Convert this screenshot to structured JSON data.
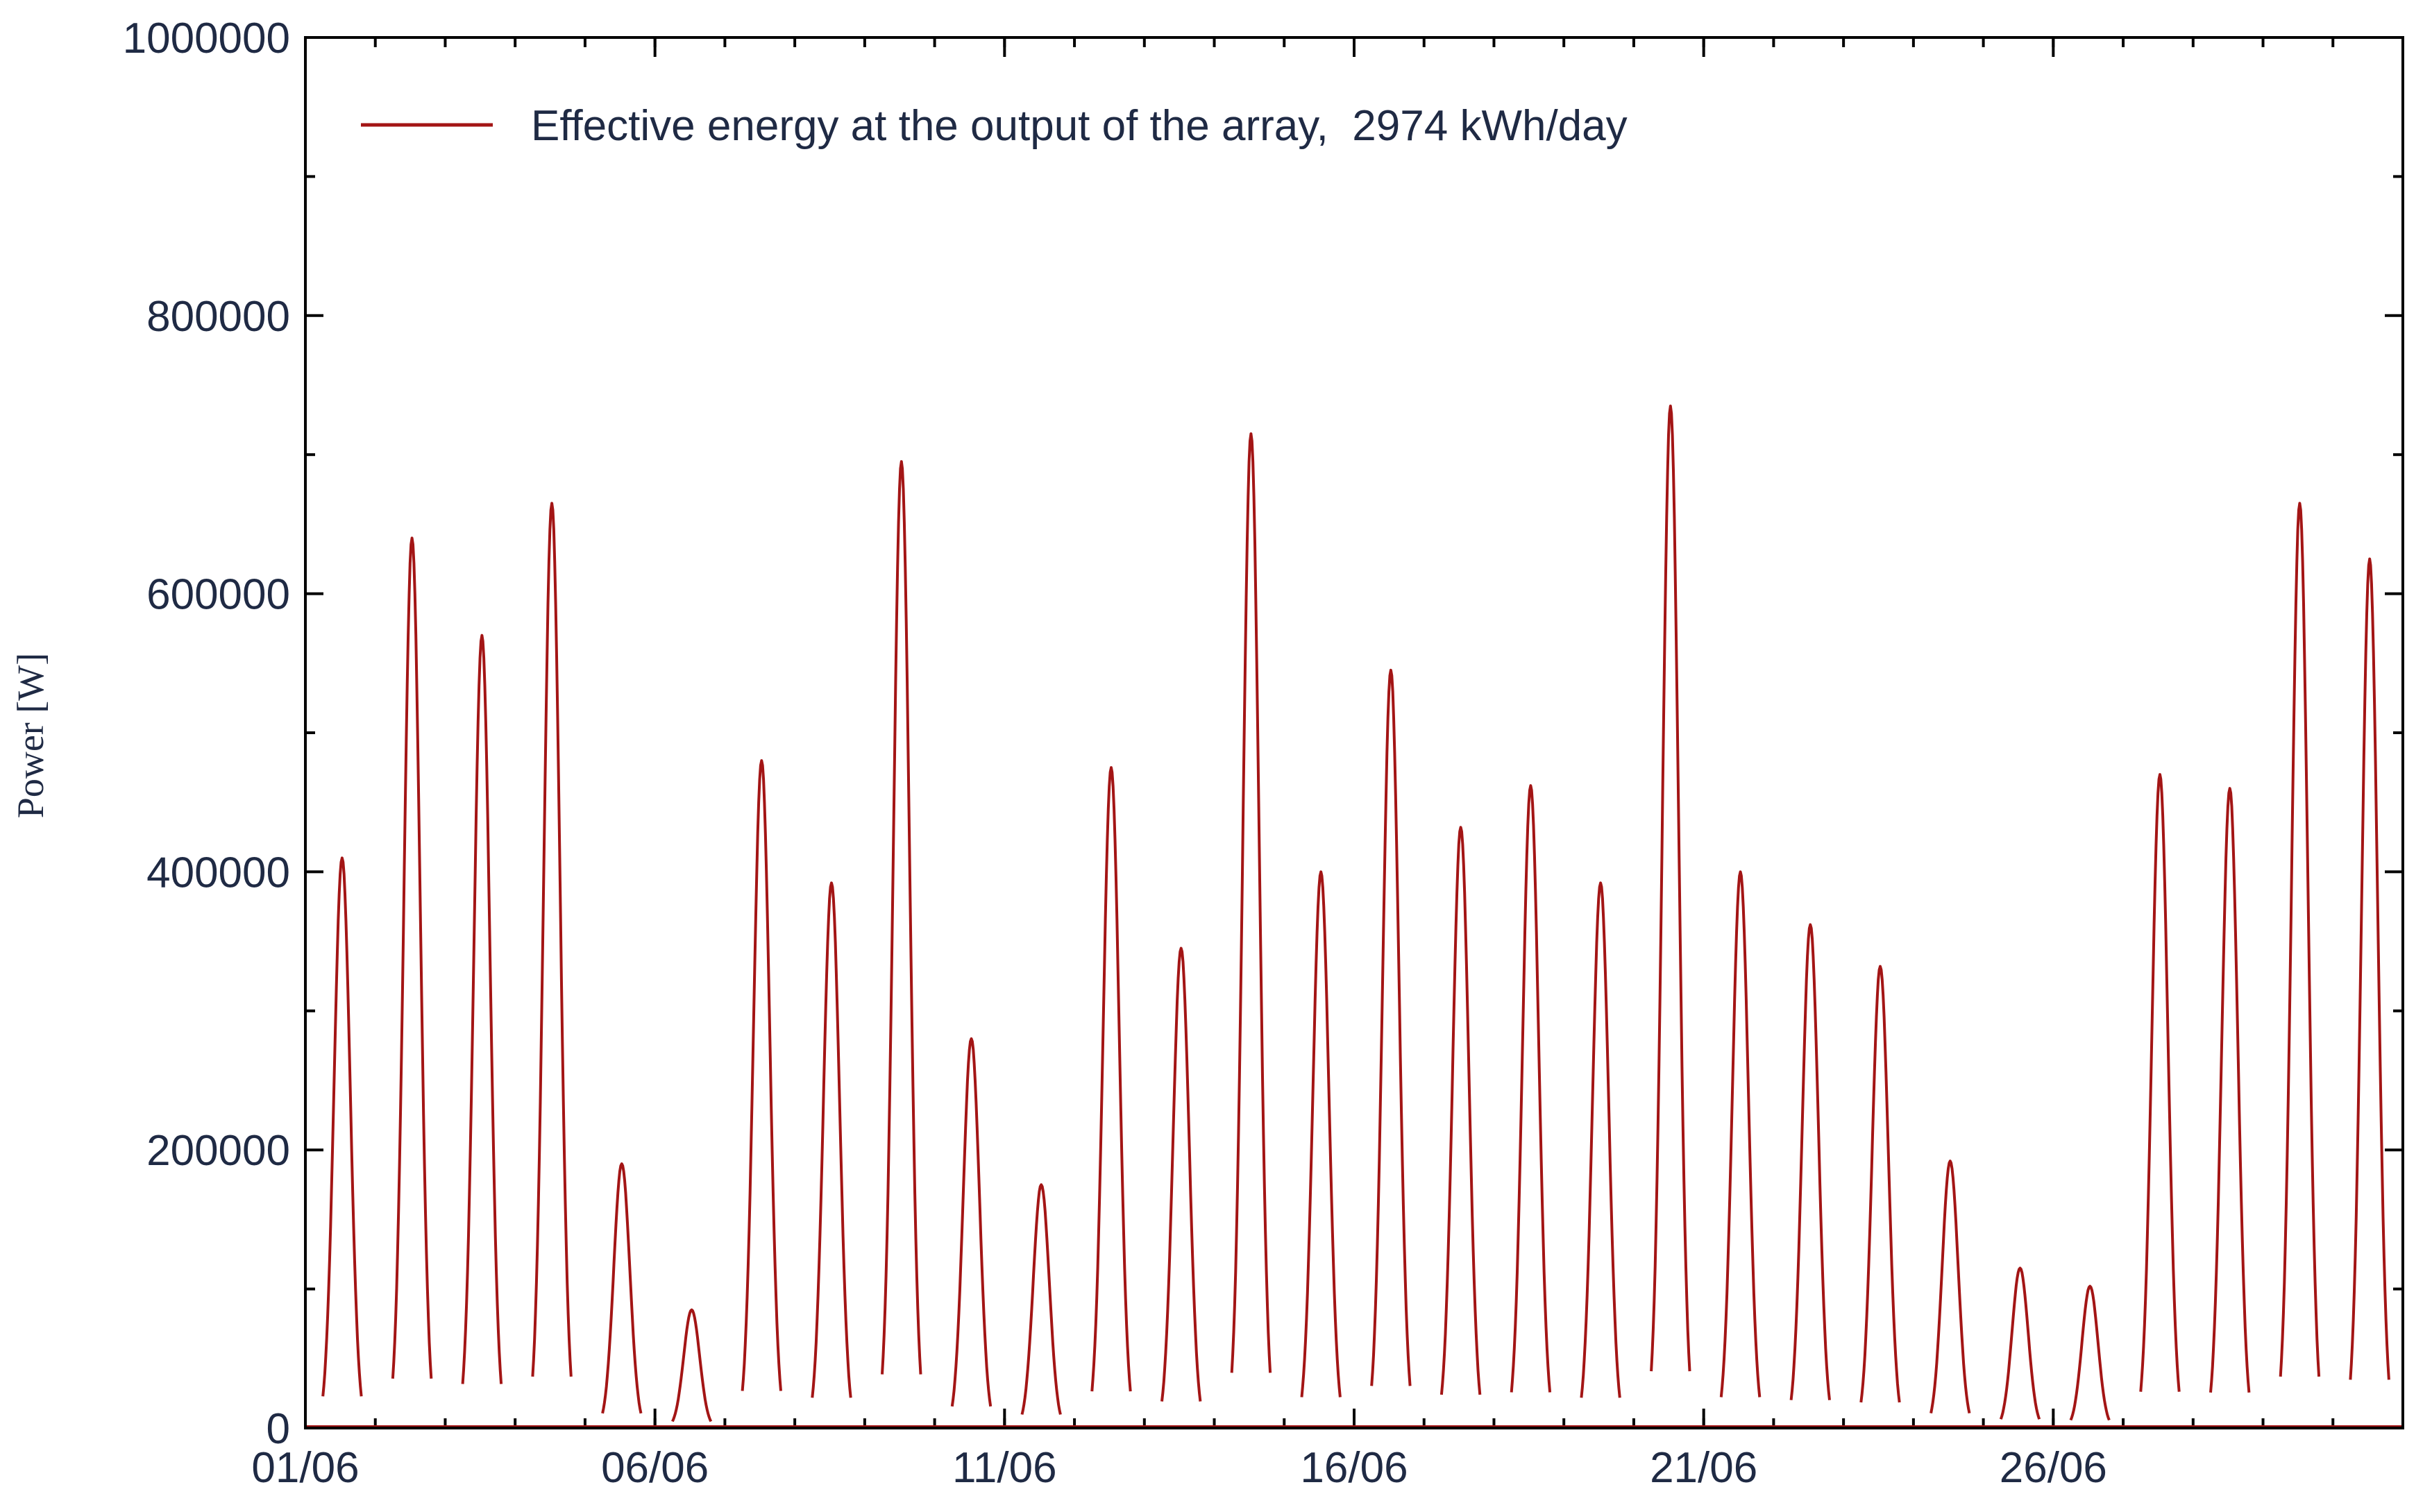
{
  "chart_data": {
    "type": "line",
    "title": "",
    "xlabel": "",
    "ylabel": "Power  [W]",
    "xlim": [
      "01/06",
      "30/06"
    ],
    "ylim": [
      0,
      1000000
    ],
    "y_ticks": [
      "0",
      "200000",
      "400000",
      "600000",
      "800000",
      "1000000"
    ],
    "x_ticks": [
      "01/06",
      "06/06",
      "11/06",
      "16/06",
      "21/06",
      "26/06"
    ],
    "grid": false,
    "legend_position": "top-left",
    "series": [
      {
        "name": "Effective energy at the output of the array,  2974 kWh/day",
        "color": "#a31515",
        "daily_peaks": [
          {
            "date": "01/06",
            "peak": 410000
          },
          {
            "date": "02/06",
            "peak": 640000
          },
          {
            "date": "03/06",
            "peak": 570000
          },
          {
            "date": "04/06",
            "peak": 665000
          },
          {
            "date": "05/06",
            "peak": 190000
          },
          {
            "date": "06/06",
            "peak": 85000
          },
          {
            "date": "07/06",
            "peak": 480000
          },
          {
            "date": "08/06",
            "peak": 392000
          },
          {
            "date": "09/06",
            "peak": 695000
          },
          {
            "date": "10/06",
            "peak": 280000
          },
          {
            "date": "11/06",
            "peak": 175000
          },
          {
            "date": "12/06",
            "peak": 475000
          },
          {
            "date": "13/06",
            "peak": 345000
          },
          {
            "date": "14/06",
            "peak": 715000
          },
          {
            "date": "15/06",
            "peak": 400000
          },
          {
            "date": "16/06",
            "peak": 545000
          },
          {
            "date": "17/06",
            "peak": 432000
          },
          {
            "date": "18/06",
            "peak": 462000
          },
          {
            "date": "19/06",
            "peak": 392000
          },
          {
            "date": "20/06",
            "peak": 735000
          },
          {
            "date": "21/06",
            "peak": 400000
          },
          {
            "date": "22/06",
            "peak": 362000
          },
          {
            "date": "23/06",
            "peak": 332000
          },
          {
            "date": "24/06",
            "peak": 192000
          },
          {
            "date": "25/06",
            "peak": 115000
          },
          {
            "date": "26/06",
            "peak": 102000
          },
          {
            "date": "27/06",
            "peak": 470000
          },
          {
            "date": "28/06",
            "peak": 460000
          },
          {
            "date": "29/06",
            "peak": 665000
          },
          {
            "date": "30/06",
            "peak": 625000
          }
        ]
      }
    ]
  }
}
